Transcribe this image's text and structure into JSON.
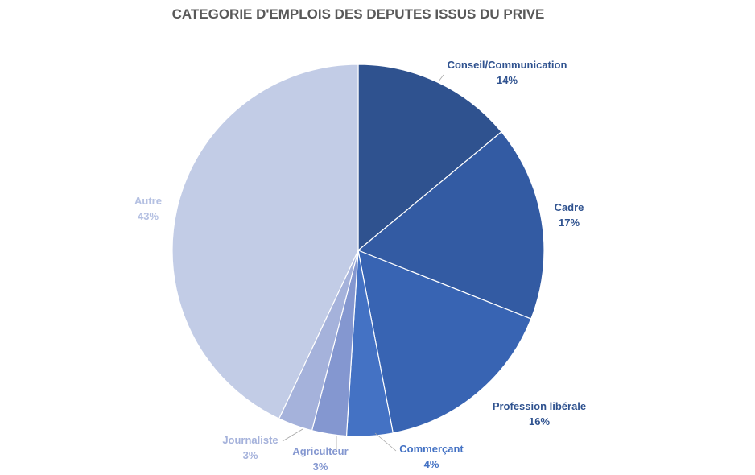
{
  "chart_data": {
    "type": "pie",
    "title": "CATEGORIE D'EMPLOIS DES DEPUTES ISSUS DU PRIVE",
    "slices": [
      {
        "label": "Conseil/Communication",
        "value": 14,
        "display": "14%",
        "color": "#2f528f"
      },
      {
        "label": "Cadre",
        "value": 17,
        "display": "17%",
        "color": "#335ba3"
      },
      {
        "label": "Profession libérale",
        "value": 16,
        "display": "16%",
        "color": "#3864b3"
      },
      {
        "label": "Commerçant",
        "value": 4,
        "display": "4%",
        "color": "#4472c4"
      },
      {
        "label": "Agriculteur",
        "value": 3,
        "display": "3%",
        "color": "#8497d0"
      },
      {
        "label": "Journaliste",
        "value": 3,
        "display": "3%",
        "color": "#a5b2db"
      },
      {
        "label": "Autre",
        "value": 43,
        "display": "43%",
        "color": "#c2cce6"
      }
    ],
    "label_colors": {
      "Conseil/Communication": "#2f528f",
      "Cadre": "#2f528f",
      "Profession libérale": "#2f528f",
      "Commerçant": "#4472c4",
      "Agriculteur": "#8497d0",
      "Journaliste": "#a5b2db",
      "Autre": "#b4c0e2"
    },
    "start_angle_deg": 0,
    "direction": "clockwise",
    "legend": "none",
    "data_labels": "outside with leader lines"
  }
}
